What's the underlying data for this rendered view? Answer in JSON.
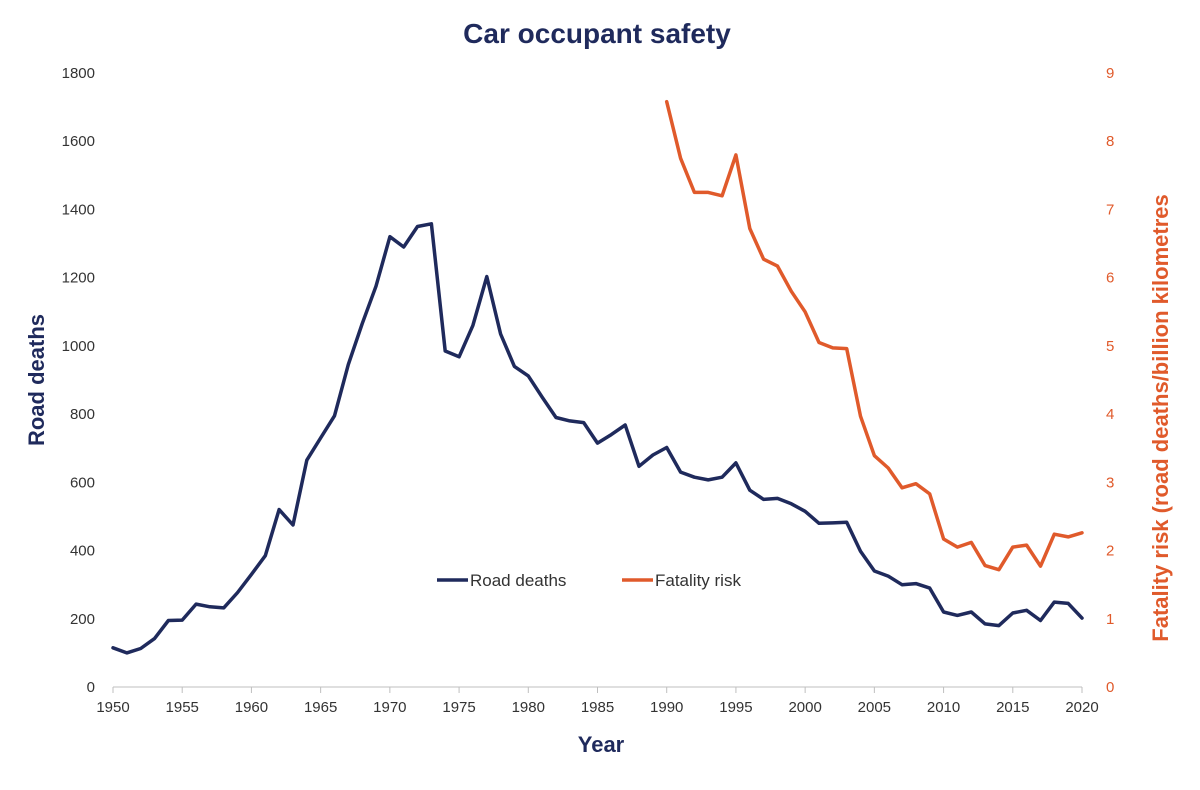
{
  "chart_data": {
    "type": "line",
    "title": "Car occupant safety",
    "xlabel": "Year",
    "ylabel": "Road deaths",
    "ylabel_right": "Fatality risk (road deaths/billion kilometres",
    "xlim": [
      1950,
      2020
    ],
    "ylim": [
      0,
      1800
    ],
    "ylim_right": [
      0,
      9
    ],
    "x_ticks": [
      1950,
      1955,
      1960,
      1965,
      1970,
      1975,
      1980,
      1985,
      1990,
      1995,
      2000,
      2005,
      2010,
      2015,
      2020
    ],
    "y_ticks": [
      0,
      200,
      400,
      600,
      800,
      1000,
      1200,
      1400,
      1600,
      1800
    ],
    "y_ticks_right": [
      0,
      1,
      2,
      3,
      4,
      5,
      6,
      7,
      8,
      9
    ],
    "grid": false,
    "legend_position": "lower-center",
    "series": [
      {
        "name": "Road deaths",
        "axis": "left",
        "color": "#1F2A5C",
        "x": [
          1950,
          1951,
          1952,
          1953,
          1954,
          1955,
          1956,
          1957,
          1958,
          1959,
          1960,
          1961,
          1962,
          1963,
          1964,
          1965,
          1966,
          1967,
          1968,
          1969,
          1970,
          1971,
          1972,
          1973,
          1974,
          1975,
          1976,
          1977,
          1978,
          1979,
          1980,
          1981,
          1982,
          1983,
          1984,
          1985,
          1986,
          1987,
          1988,
          1989,
          1990,
          1991,
          1992,
          1993,
          1994,
          1995,
          1996,
          1997,
          1998,
          1999,
          2000,
          2001,
          2002,
          2003,
          2004,
          2005,
          2006,
          2007,
          2008,
          2009,
          2010,
          2011,
          2012,
          2013,
          2014,
          2015,
          2016,
          2017,
          2018,
          2019,
          2020
        ],
        "values": [
          115,
          100,
          113,
          142,
          195,
          196,
          243,
          235,
          232,
          277,
          330,
          385,
          520,
          475,
          665,
          730,
          795,
          945,
          1065,
          1175,
          1320,
          1290,
          1350,
          1358,
          985,
          968,
          1060,
          1203,
          1035,
          940,
          912,
          850,
          790,
          780,
          775,
          715,
          740,
          768,
          647,
          680,
          702,
          630,
          615,
          607,
          615,
          657,
          577,
          550,
          553,
          537,
          515,
          480,
          481,
          483,
          398,
          340,
          325,
          300,
          303,
          290,
          220,
          210,
          220,
          185,
          180,
          217,
          225,
          195,
          249,
          245,
          202
        ]
      },
      {
        "name": "Fatality risk",
        "axis": "right",
        "color": "#E05A2B",
        "x": [
          1990,
          1991,
          1992,
          1993,
          1994,
          1995,
          1996,
          1997,
          1998,
          1999,
          2000,
          2001,
          2002,
          2003,
          2004,
          2005,
          2006,
          2007,
          2008,
          2009,
          2010,
          2011,
          2012,
          2013,
          2014,
          2015,
          2016,
          2017,
          2018,
          2019,
          2020
        ],
        "values": [
          8.58,
          7.75,
          7.25,
          7.25,
          7.2,
          7.8,
          6.72,
          6.27,
          6.17,
          5.8,
          5.5,
          5.05,
          4.97,
          4.96,
          3.97,
          3.39,
          3.21,
          2.92,
          2.98,
          2.83,
          2.17,
          2.05,
          2.12,
          1.78,
          1.72,
          2.05,
          2.08,
          1.77,
          2.24,
          2.2,
          2.26
        ]
      }
    ]
  }
}
